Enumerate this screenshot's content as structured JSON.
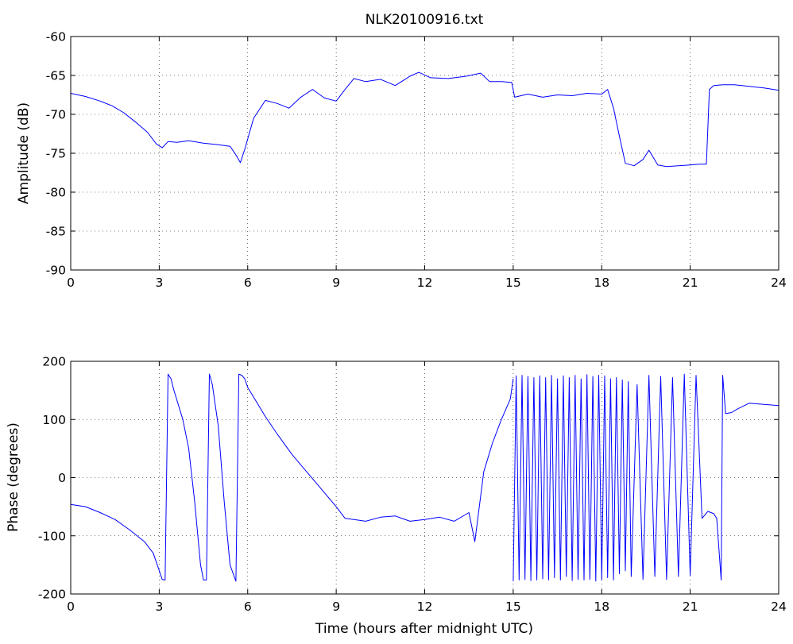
{
  "figure": {
    "title": "NLK20100916.txt",
    "line_color": "#0000ff"
  },
  "chart_data": [
    {
      "type": "line",
      "title": "NLK20100916.txt",
      "xlabel": "",
      "ylabel": "Amplitude (dB)",
      "xlim": [
        0,
        24
      ],
      "ylim": [
        -90,
        -60
      ],
      "xticks": [
        0,
        3,
        6,
        9,
        12,
        15,
        18,
        21,
        24
      ],
      "yticks": [
        -60,
        -65,
        -70,
        -75,
        -80,
        -85,
        -90
      ],
      "grid": true,
      "series": [
        {
          "color": "#0000ff",
          "x": [
            0,
            0.5,
            1.0,
            1.4,
            1.8,
            2.2,
            2.6,
            2.9,
            3.1,
            3.3,
            3.6,
            4.0,
            4.5,
            5.0,
            5.4,
            5.6,
            5.75,
            5.9,
            6.2,
            6.6,
            7.0,
            7.4,
            7.8,
            8.2,
            8.6,
            9.0,
            9.3,
            9.6,
            10.0,
            10.5,
            11.0,
            11.5,
            11.8,
            12.2,
            12.8,
            13.4,
            13.9,
            14.2,
            14.6,
            14.95,
            15.05,
            15.5,
            16.0,
            16.5,
            17.0,
            17.5,
            18.0,
            18.2,
            18.4,
            18.6,
            18.8,
            19.1,
            19.4,
            19.6,
            19.9,
            20.2,
            20.6,
            21.0,
            21.3,
            21.55,
            21.65,
            21.8,
            22.1,
            22.5,
            23.0,
            23.5,
            24.0
          ],
          "y": [
            -67.3,
            -67.7,
            -68.3,
            -68.9,
            -69.8,
            -71.0,
            -72.3,
            -73.8,
            -74.3,
            -73.5,
            -73.6,
            -73.4,
            -73.7,
            -73.9,
            -74.1,
            -75.2,
            -76.2,
            -74.5,
            -70.5,
            -68.2,
            -68.6,
            -69.2,
            -67.8,
            -66.8,
            -67.9,
            -68.3,
            -66.8,
            -65.4,
            -65.8,
            -65.5,
            -66.3,
            -65.1,
            -64.6,
            -65.3,
            -65.4,
            -65.1,
            -64.7,
            -65.8,
            -65.8,
            -65.9,
            -67.8,
            -67.4,
            -67.8,
            -67.5,
            -67.6,
            -67.3,
            -67.4,
            -66.8,
            -69.2,
            -72.8,
            -76.3,
            -76.6,
            -75.8,
            -74.6,
            -76.5,
            -76.7,
            -76.6,
            -76.5,
            -76.4,
            -76.4,
            -66.8,
            -66.3,
            -66.2,
            -66.2,
            -66.4,
            -66.6,
            -66.9
          ]
        }
      ]
    },
    {
      "type": "line",
      "xlabel": "Time (hours after midnight UTC)",
      "ylabel": "Phase (degrees)",
      "xlim": [
        0,
        24
      ],
      "ylim": [
        -200,
        200
      ],
      "xticks": [
        0,
        3,
        6,
        9,
        12,
        15,
        18,
        21,
        24
      ],
      "yticks": [
        200,
        100,
        0,
        -100,
        -200
      ],
      "grid": true,
      "series": [
        {
          "color": "#0000ff",
          "x": [
            0,
            0.5,
            1.0,
            1.5,
            2.0,
            2.5,
            2.8,
            3.0,
            3.1,
            3.2,
            3.3,
            3.4,
            3.5,
            3.8,
            4.0,
            4.2,
            4.4,
            4.5,
            4.6,
            4.7,
            4.75,
            4.8,
            5.0,
            5.2,
            5.4,
            5.6,
            5.7,
            5.8,
            5.9,
            6.0,
            6.3,
            6.6,
            7.0,
            7.5,
            8.0,
            8.5,
            9.0,
            9.3,
            9.6,
            10.0,
            10.5,
            11.0,
            11.5,
            12.0,
            12.5,
            13.0,
            13.5,
            13.7,
            14.0,
            14.3,
            14.6,
            14.9,
            15.0
          ],
          "y": [
            -46,
            -50,
            -60,
            -72,
            -90,
            -110,
            -130,
            -160,
            -175,
            -176,
            178,
            170,
            150,
            100,
            50,
            -40,
            -150,
            -176,
            -176,
            178,
            170,
            160,
            90,
            -40,
            -150,
            -178,
            178,
            176,
            170,
            155,
            130,
            105,
            75,
            40,
            10,
            -20,
            -50,
            -70,
            -72,
            -75,
            -68,
            -66,
            -75,
            -72,
            -68,
            -75,
            -60,
            -110,
            10,
            60,
            100,
            135,
            170
          ]
        },
        {
          "color": "#0000ff",
          "x": [
            15.0,
            15.1,
            15.2,
            15.3,
            15.4,
            15.5,
            15.6,
            15.7,
            15.8,
            15.9,
            16.0,
            16.1,
            16.2,
            16.3,
            16.4,
            16.5,
            16.6,
            16.7,
            16.8,
            16.9,
            17.0,
            17.1,
            17.2,
            17.3,
            17.4,
            17.5,
            17.6,
            17.7,
            17.8,
            17.9,
            18.0,
            18.1,
            18.2,
            18.3,
            18.4,
            18.5,
            18.6,
            18.7,
            18.8,
            18.9,
            19.0,
            19.2,
            19.4,
            19.6,
            19.8,
            20.0,
            20.2,
            20.4,
            20.6,
            20.8,
            21.0,
            21.2,
            21.4,
            21.6,
            21.8,
            21.9,
            22.05,
            22.1,
            22.2,
            22.4,
            22.6,
            23.0,
            23.5,
            24.0
          ],
          "y": [
            -178,
            175,
            -176,
            176,
            -175,
            174,
            -177,
            172,
            -176,
            175,
            -174,
            172,
            -176,
            176,
            -172,
            170,
            -176,
            175,
            -170,
            172,
            -177,
            176,
            -175,
            170,
            -176,
            177,
            -175,
            174,
            -178,
            176,
            -176,
            175,
            -172,
            170,
            -176,
            172,
            -165,
            168,
            -160,
            165,
            -170,
            160,
            -175,
            176,
            -170,
            174,
            -175,
            172,
            -170,
            178,
            -168,
            176,
            -70,
            -58,
            -62,
            -70,
            -176,
            176,
            110,
            112,
            118,
            128,
            126,
            124
          ]
        }
      ]
    }
  ]
}
